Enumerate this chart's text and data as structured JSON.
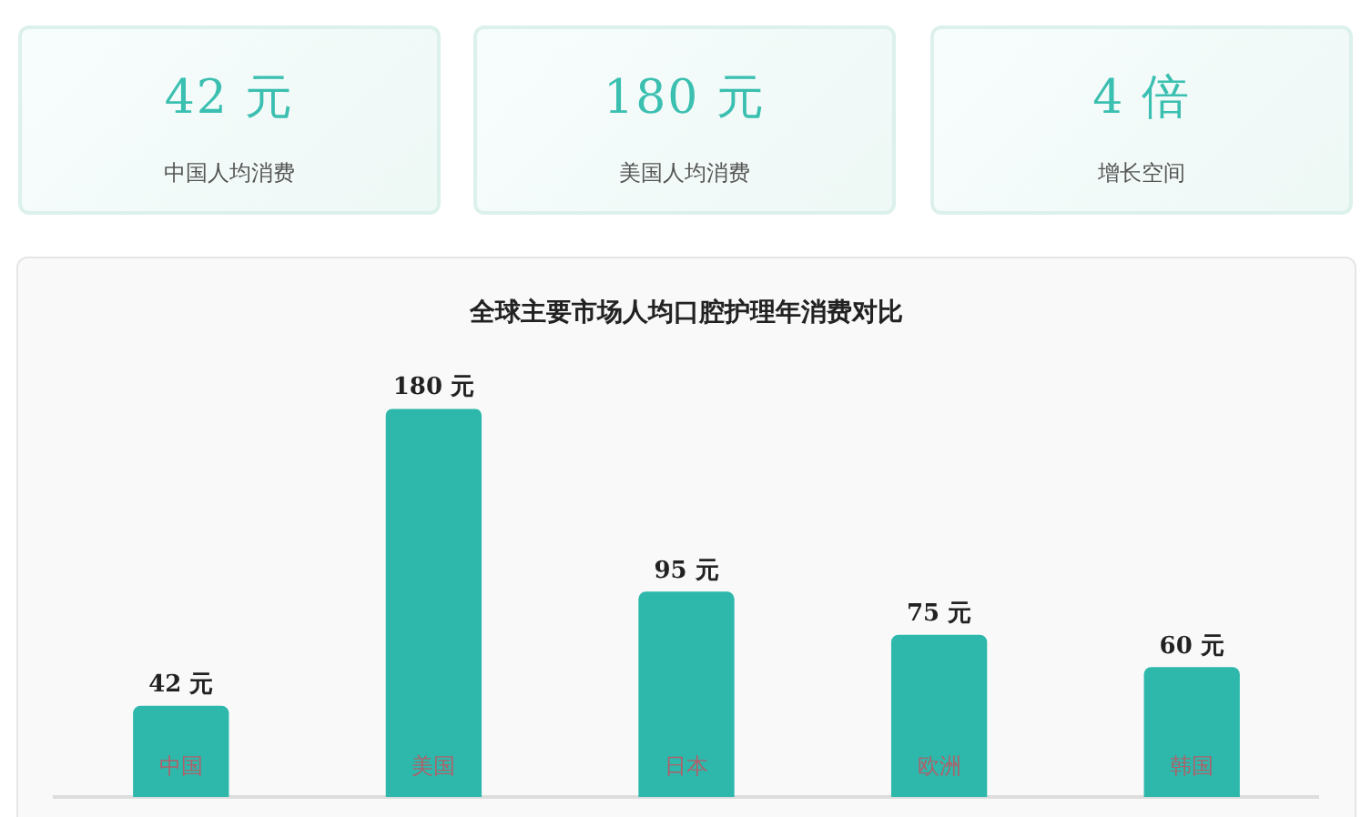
{
  "chart_data": [
    {
      "type": "other",
      "title": "42 元",
      "subtitle": "中国人均消费"
    },
    {
      "type": "other",
      "title": "180 元",
      "subtitle": "美国人均消费"
    },
    {
      "type": "other",
      "title": "4 倍",
      "subtitle": "增长空间"
    },
    {
      "type": "bar",
      "title": "全球主要市场人均口腔护理年消费对比",
      "categories": [
        "中国",
        "美国",
        "日本",
        "欧洲",
        "韩国"
      ],
      "values": [
        42,
        180,
        95,
        75,
        60
      ],
      "color": "#2db8ab",
      "value_labels": [
        "42 元",
        "180 元",
        "95 元",
        "75 元",
        "60 元"
      ],
      "grid": false,
      "legend": false
    }
  ]
}
